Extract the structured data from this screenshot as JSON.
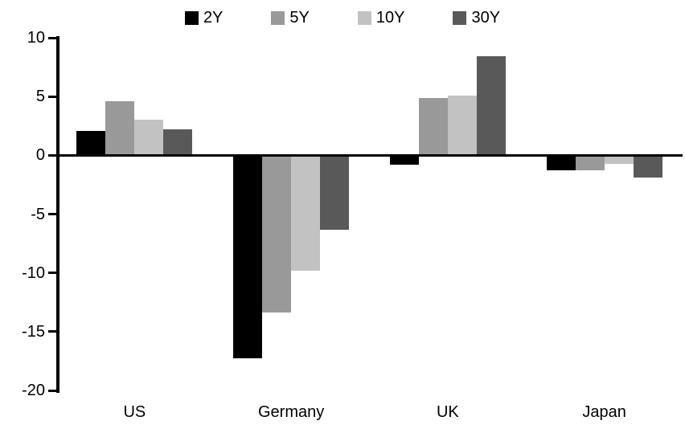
{
  "chart_data": {
    "type": "bar",
    "title": "",
    "xlabel": "",
    "ylabel": "",
    "categories": [
      "US",
      "Germany",
      "UK",
      "Japan"
    ],
    "series": [
      {
        "name": "2Y",
        "color": "#000000",
        "values": [
          2.1,
          -17.3,
          -0.8,
          -1.3
        ]
      },
      {
        "name": "5Y",
        "color": "#999999",
        "values": [
          4.6,
          -13.4,
          4.9,
          -1.3
        ]
      },
      {
        "name": "10Y",
        "color": "#c2c2c2",
        "values": [
          3.0,
          -9.8,
          5.1,
          -0.7
        ]
      },
      {
        "name": "30Y",
        "color": "#595959",
        "values": [
          2.2,
          -6.3,
          8.4,
          -1.9
        ]
      }
    ],
    "ylim": [
      -20,
      10
    ],
    "yticks": [
      10,
      5,
      0,
      -5,
      -10,
      -15,
      -20
    ],
    "grid": false,
    "legend_position": "top",
    "axis_color": "#000000",
    "background_color": "#ffffff"
  }
}
